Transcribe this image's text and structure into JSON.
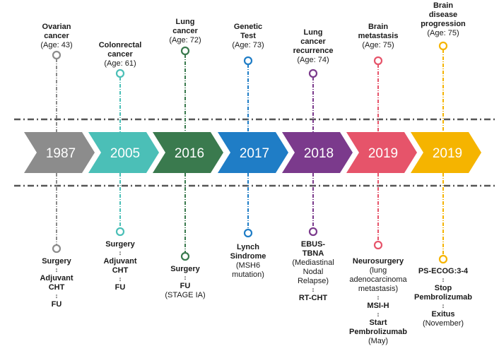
{
  "events": [
    {
      "year": "1987",
      "color": "#8c8c8c",
      "top": [
        {
          "text": "Ovarian",
          "style": "bold"
        },
        {
          "text": "cancer",
          "style": "bold"
        },
        {
          "text": "(Age: 43)",
          "style": "normal"
        }
      ],
      "bottom": [
        {
          "text": "Surgery",
          "style": "bold"
        },
        {
          "text": "↕",
          "style": "arrow"
        },
        {
          "text": "Adjuvant",
          "style": "bold"
        },
        {
          "text": "CHT",
          "style": "bold"
        },
        {
          "text": "↕",
          "style": "arrow"
        },
        {
          "text": "FU",
          "style": "bold"
        }
      ]
    },
    {
      "year": "2005",
      "color": "#4bbfb7",
      "top": [
        {
          "text": "Colonrectal",
          "style": "bold"
        },
        {
          "text": "cancer",
          "style": "bold"
        },
        {
          "text": "(Age: 61)",
          "style": "normal"
        }
      ],
      "bottom": [
        {
          "text": "Surgery",
          "style": "bold"
        },
        {
          "text": "↕",
          "style": "arrow"
        },
        {
          "text": "Adjuvant",
          "style": "bold"
        },
        {
          "text": "CHT",
          "style": "bold"
        },
        {
          "text": "↕",
          "style": "arrow"
        },
        {
          "text": "FU",
          "style": "bold"
        }
      ]
    },
    {
      "year": "2016",
      "color": "#3a7a4e",
      "top": [
        {
          "text": "Lung",
          "style": "bold"
        },
        {
          "text": "cancer",
          "style": "bold"
        },
        {
          "text": "(Age: 72)",
          "style": "normal"
        }
      ],
      "bottom": [
        {
          "text": "Surgery",
          "style": "bold"
        },
        {
          "text": "↕",
          "style": "arrow"
        },
        {
          "text": "FU",
          "style": "bold"
        },
        {
          "text": "(STAGE IA)",
          "style": "normal"
        }
      ]
    },
    {
      "year": "2017",
      "color": "#1f7dc6",
      "top": [
        {
          "text": "Genetic",
          "style": "bold"
        },
        {
          "text": "Test",
          "style": "bold"
        },
        {
          "text": "(Age: 73)",
          "style": "normal"
        }
      ],
      "bottom": [
        {
          "text": "Lynch",
          "style": "bold"
        },
        {
          "text": "Sindrome",
          "style": "bold"
        },
        {
          "text": "(MSH6",
          "style": "normal"
        },
        {
          "text": "mutation)",
          "style": "normal"
        }
      ]
    },
    {
      "year": "2018",
      "color": "#7b3a8c",
      "top": [
        {
          "text": "Lung",
          "style": "bold"
        },
        {
          "text": "cancer",
          "style": "bold"
        },
        {
          "text": "recurrence",
          "style": "bold"
        },
        {
          "text": "(Age: 74)",
          "style": "normal"
        }
      ],
      "bottom": [
        {
          "text": "EBUS-",
          "style": "bold"
        },
        {
          "text": "TBNA",
          "style": "bold"
        },
        {
          "text": "(Mediastinal",
          "style": "normal"
        },
        {
          "text": "Nodal",
          "style": "normal"
        },
        {
          "text": "Relapse)",
          "style": "normal"
        },
        {
          "text": "↕",
          "style": "arrow"
        },
        {
          "text": "RT-CHT",
          "style": "bold"
        }
      ]
    },
    {
      "year": "2019",
      "color": "#e6546a",
      "top": [
        {
          "text": "Brain",
          "style": "bold"
        },
        {
          "text": "metastasis",
          "style": "bold"
        },
        {
          "text": "(Age: 75)",
          "style": "normal"
        }
      ],
      "bottom": [
        {
          "text": "Neurosurgery",
          "style": "bold"
        },
        {
          "text": "(lung",
          "style": "normal"
        },
        {
          "text": "adenocarcinoma",
          "style": "normal"
        },
        {
          "text": "metastasis)",
          "style": "normal"
        },
        {
          "text": "↕",
          "style": "arrow"
        },
        {
          "text": "MSI-H",
          "style": "bold"
        },
        {
          "text": "↕",
          "style": "arrow"
        },
        {
          "text": "Start",
          "style": "bold"
        },
        {
          "text": "Pembrolizumab",
          "style": "bold"
        },
        {
          "text": "(May)",
          "style": "normal"
        }
      ]
    },
    {
      "year": "2019",
      "color": "#f5b400",
      "top": [
        {
          "text": "Brain",
          "style": "bold"
        },
        {
          "text": "disease",
          "style": "bold"
        },
        {
          "text": "progression",
          "style": "bold"
        },
        {
          "text": "(Age: 75)",
          "style": "normal"
        }
      ],
      "bottom": [
        {
          "text": "PS-ECOG:3-4",
          "style": "bold"
        },
        {
          "text": "↕",
          "style": "arrow"
        },
        {
          "text": "Stop",
          "style": "bold"
        },
        {
          "text": "Pembrolizumab",
          "style": "bold"
        },
        {
          "text": "↕",
          "style": "arrow"
        },
        {
          "text": "Exitus",
          "style": "bold"
        },
        {
          "text": "(November)",
          "style": "normal"
        }
      ]
    }
  ]
}
